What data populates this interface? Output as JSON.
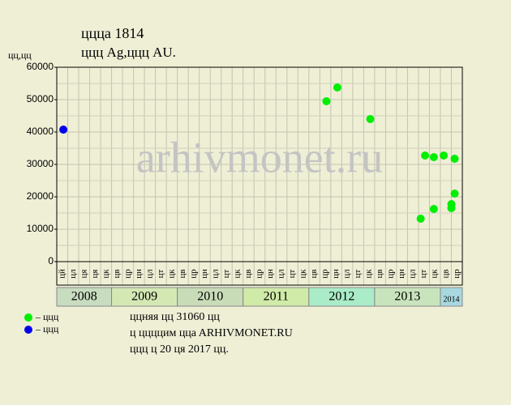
{
  "chart_data": {
    "type": "scatter",
    "title": "ццца 1814",
    "subtitle": "ццц Ag,ццц AU.",
    "ylabel": "цц,цц",
    "watermark": "arhivmonet.ru",
    "ylim": [
      0,
      60000
    ],
    "yticks": [
      0,
      10000,
      20000,
      30000,
      40000,
      50000,
      60000
    ],
    "xlim": [
      0,
      37
    ],
    "grid": true,
    "years": [
      {
        "label": "2008",
        "color": "#c8dcc0",
        "months": [
          "цй",
          "цл",
          "ця",
          "ця",
          "цк"
        ]
      },
      {
        "label": "2009",
        "color": "#d4e8b4",
        "months": [
          "цв",
          "цр",
          "цн",
          "цл",
          "цт",
          "цк"
        ]
      },
      {
        "label": "2010",
        "color": "#c8dcb8",
        "months": [
          "цв",
          "цр",
          "цн",
          "цл",
          "цт",
          "цк"
        ]
      },
      {
        "label": "2011",
        "color": "#d0eaa8",
        "months": [
          "цв",
          "цр",
          "цн",
          "цл",
          "цт",
          "цк"
        ]
      },
      {
        "label": "2012",
        "color": "#aaecc8",
        "months": [
          "цв",
          "цр",
          "цн",
          "цл",
          "цт",
          "цк"
        ]
      },
      {
        "label": "2013",
        "color": "#c8e4bc",
        "months": [
          "цв",
          "цр",
          "цн",
          "цл",
          "цт",
          "цк"
        ]
      },
      {
        "label": "2014",
        "color": "#a8d8e0",
        "months": [
          "цв",
          "цр"
        ]
      }
    ],
    "series": [
      {
        "name": "– ццц",
        "color": "#00ee00",
        "x": [
          24.6,
          25.6,
          28.6,
          33.2,
          33.6,
          34.4,
          34.4,
          35.3,
          36.0,
          36.0,
          36.3,
          36.3
        ],
        "values": [
          49500,
          53750,
          44000,
          13250,
          32750,
          16250,
          32250,
          32750,
          17750,
          16500,
          21000,
          31750
        ]
      },
      {
        "name": "– ццц",
        "color": "#0000ee",
        "x": [
          0.6
        ],
        "values": [
          40750
        ]
      }
    ],
    "notes": [
      "ццняя цц 31060 цц",
      "ц ццццим ццa ARHIVMONET.RU",
      "ццц ц 20 ця 2017 цц."
    ]
  }
}
